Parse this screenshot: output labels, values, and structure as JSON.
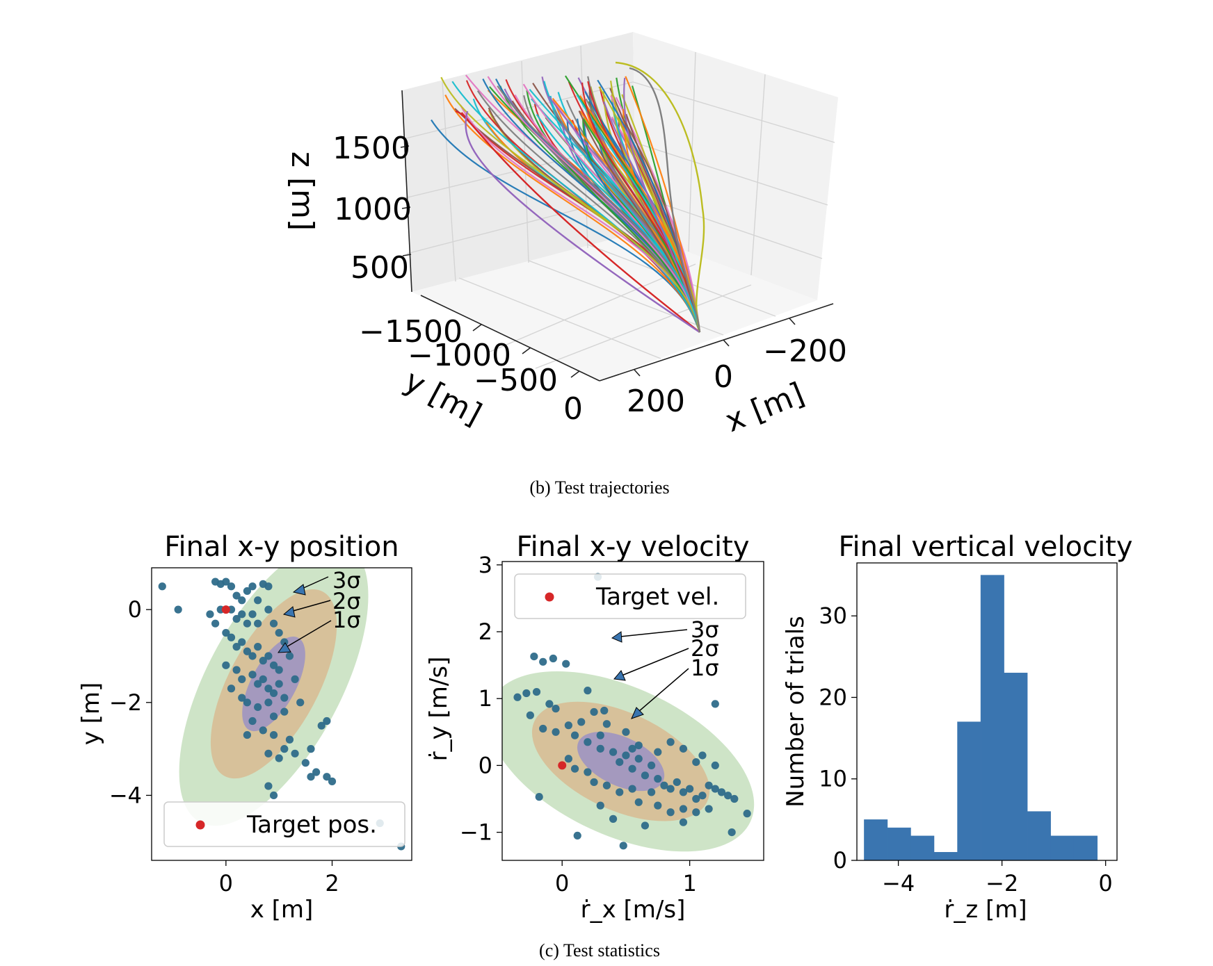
{
  "captions": {
    "b": "(b)  Test trajectories",
    "c": "(c)  Test statistics"
  },
  "trajectory_plot": {
    "zlabel": "z [m]",
    "ylabel": "y [m]",
    "xlabel": "x [m]",
    "z_ticks": [
      "1500",
      "1000",
      "500"
    ],
    "y_ticks": [
      "−1500",
      "−1000",
      "−500",
      "0"
    ],
    "x_ticks": [
      "−200",
      "0",
      "200"
    ]
  },
  "colors": {
    "tab": [
      "#1f77b4",
      "#ff7f0e",
      "#2ca02c",
      "#d62728",
      "#9467bd",
      "#8c564b",
      "#e377c2",
      "#7f7f7f",
      "#bcbd22",
      "#17becf"
    ],
    "target": "#d62728",
    "hist_bar": "#3a75b0",
    "scatter": "#2e6b8a",
    "sigma1": "#9b92c4",
    "sigma2": "#d8bb92",
    "sigma3": "#cbe3c4"
  },
  "chart_data": [
    {
      "type": "line",
      "title": "",
      "projection": "3d",
      "xlabel": "x [m]",
      "ylabel": "y [m]",
      "zlabel": "z [m]",
      "xlim": [
        -300,
        300
      ],
      "ylim": [
        -1700,
        0
      ],
      "zlim": [
        200,
        1900
      ],
      "description_series": "about 100 simulated test trajectories converging to the origin at z≈0",
      "grid": true
    },
    {
      "type": "scatter",
      "title": "Final x-y position",
      "xlabel": "x [m]",
      "ylabel": "y [m]",
      "xlim": [
        -1.4,
        3.5
      ],
      "ylim": [
        -5.4,
        0.9
      ],
      "x_ticks": [
        0,
        2
      ],
      "y_ticks": [
        0,
        -2,
        -4
      ],
      "x_tick_labels": [
        "0",
        "2"
      ],
      "y_tick_labels": [
        "0",
        "−2",
        "−4"
      ],
      "legend": {
        "label": "Target pos.",
        "position": "lower right"
      },
      "target": [
        0,
        0
      ],
      "sigma_labels": [
        "3σ",
        "2σ",
        "1σ"
      ],
      "ellipse_center": [
        0.9,
        -1.6
      ],
      "ellipse_angle_deg": 62,
      "ellipse_semi_axes": [
        [
          1.05,
          0.45
        ],
        [
          2.1,
          0.9
        ],
        [
          3.15,
          1.35
        ]
      ],
      "points": [
        [
          -1.2,
          0.5
        ],
        [
          -0.9,
          0.0
        ],
        [
          -0.2,
          0.6
        ],
        [
          -0.1,
          0.55
        ],
        [
          0.0,
          0.6
        ],
        [
          0.1,
          0.5
        ],
        [
          0.2,
          0.3
        ],
        [
          0.3,
          0.2
        ],
        [
          0.4,
          0.4
        ],
        [
          0.5,
          0.5
        ],
        [
          0.6,
          0.2
        ],
        [
          0.7,
          0.55
        ],
        [
          0.8,
          0.5
        ],
        [
          0.8,
          0.0
        ],
        [
          -0.3,
          -0.1
        ],
        [
          -0.2,
          -0.3
        ],
        [
          -0.1,
          0.0
        ],
        [
          0.1,
          0.0
        ],
        [
          0.2,
          -0.2
        ],
        [
          0.3,
          -0.1
        ],
        [
          0.4,
          -0.3
        ],
        [
          0.5,
          -0.1
        ],
        [
          0.6,
          -0.3
        ],
        [
          0.9,
          -0.3
        ],
        [
          1.0,
          -0.5
        ],
        [
          1.1,
          -0.7
        ],
        [
          0.0,
          -0.5
        ],
        [
          0.1,
          -0.6
        ],
        [
          0.2,
          -0.8
        ],
        [
          0.3,
          -0.7
        ],
        [
          0.4,
          -0.9
        ],
        [
          0.5,
          -1.0
        ],
        [
          0.6,
          -0.8
        ],
        [
          0.7,
          -1.1
        ],
        [
          0.8,
          -1.0
        ],
        [
          0.9,
          -1.2
        ],
        [
          1.0,
          -1.3
        ],
        [
          1.2,
          -1.0
        ],
        [
          0.0,
          -1.2
        ],
        [
          0.2,
          -1.3
        ],
        [
          0.3,
          -1.5
        ],
        [
          0.5,
          -1.4
        ],
        [
          0.6,
          -1.6
        ],
        [
          0.7,
          -1.5
        ],
        [
          0.8,
          -1.7
        ],
        [
          0.9,
          -1.8
        ],
        [
          1.0,
          -1.6
        ],
        [
          1.1,
          -1.9
        ],
        [
          1.3,
          -1.5
        ],
        [
          0.1,
          -1.7
        ],
        [
          0.3,
          -1.9
        ],
        [
          0.4,
          -2.0
        ],
        [
          0.6,
          -2.1
        ],
        [
          0.8,
          -2.0
        ],
        [
          0.9,
          -2.3
        ],
        [
          1.1,
          -2.2
        ],
        [
          1.4,
          -2.0
        ],
        [
          0.5,
          -2.4
        ],
        [
          0.7,
          -2.6
        ],
        [
          0.9,
          -2.7
        ],
        [
          1.2,
          -2.8
        ],
        [
          1.3,
          -3.1
        ],
        [
          0.8,
          -3.1
        ],
        [
          1.0,
          -3.2
        ],
        [
          1.1,
          -3.0
        ],
        [
          1.6,
          -3.0
        ],
        [
          1.8,
          -2.5
        ],
        [
          1.9,
          -2.4
        ],
        [
          0.4,
          -2.7
        ],
        [
          1.5,
          -3.3
        ],
        [
          1.7,
          -3.5
        ],
        [
          1.6,
          -3.6
        ],
        [
          1.9,
          -3.6
        ],
        [
          2.0,
          -3.7
        ],
        [
          0.8,
          -3.8
        ],
        [
          0.9,
          -4.0
        ],
        [
          2.9,
          -4.6
        ],
        [
          3.3,
          -5.1
        ]
      ]
    },
    {
      "type": "scatter",
      "title": "Final x-y velocity",
      "xlabel": "ṙ_x [m/s]",
      "ylabel": "ṙ_y [m/s]",
      "xlim": [
        -0.47,
        1.58
      ],
      "ylim": [
        -1.42,
        3.05
      ],
      "x_ticks": [
        0,
        1
      ],
      "y_ticks": [
        3,
        2,
        1,
        0,
        -1
      ],
      "x_tick_labels": [
        "0",
        "1"
      ],
      "y_tick_labels": [
        "3",
        "2",
        "1",
        "0",
        "−1"
      ],
      "legend": {
        "label": "Target vel.",
        "position": "upper left"
      },
      "target": [
        0,
        0
      ],
      "sigma_labels": [
        "3σ",
        "2σ",
        "1σ"
      ],
      "ellipse_center": [
        0.46,
        0.06
      ],
      "ellipse_angle_deg": -25,
      "ellipse_semi_axes": [
        [
          0.48,
          0.25
        ],
        [
          0.98,
          0.5
        ],
        [
          1.47,
          0.76
        ]
      ],
      "points": [
        [
          0.28,
          2.82
        ],
        [
          -0.22,
          1.63
        ],
        [
          -0.15,
          1.55
        ],
        [
          -0.07,
          1.6
        ],
        [
          0.03,
          1.52
        ],
        [
          -0.35,
          1.02
        ],
        [
          -0.28,
          1.08
        ],
        [
          -0.2,
          1.1
        ],
        [
          -0.1,
          0.92
        ],
        [
          -0.05,
          0.85
        ],
        [
          0.2,
          1.12
        ],
        [
          0.25,
          0.8
        ],
        [
          0.33,
          0.82
        ],
        [
          0.35,
          0.62
        ],
        [
          0.15,
          0.65
        ],
        [
          -0.25,
          0.75
        ],
        [
          -0.15,
          0.55
        ],
        [
          -0.05,
          0.5
        ],
        [
          0.05,
          0.6
        ],
        [
          0.1,
          0.45
        ],
        [
          0.2,
          0.35
        ],
        [
          0.3,
          0.45
        ],
        [
          0.3,
          0.25
        ],
        [
          0.4,
          0.2
        ],
        [
          0.45,
          0.05
        ],
        [
          0.5,
          0.15
        ],
        [
          0.55,
          -0.05
        ],
        [
          0.6,
          0.1
        ],
        [
          0.65,
          -0.15
        ],
        [
          0.7,
          0.0
        ],
        [
          0.75,
          -0.2
        ],
        [
          0.8,
          -0.3
        ],
        [
          0.85,
          -0.35
        ],
        [
          0.9,
          -0.25
        ],
        [
          0.95,
          -0.4
        ],
        [
          1.0,
          -0.35
        ],
        [
          1.05,
          -0.5
        ],
        [
          1.1,
          -0.45
        ],
        [
          1.15,
          -0.3
        ],
        [
          1.2,
          -0.35
        ],
        [
          1.25,
          -0.4
        ],
        [
          1.3,
          -0.45
        ],
        [
          1.35,
          -0.5
        ],
        [
          0.05,
          0.1
        ],
        [
          0.1,
          -0.05
        ],
        [
          0.2,
          -0.1
        ],
        [
          0.25,
          -0.25
        ],
        [
          0.35,
          -0.3
        ],
        [
          0.45,
          -0.4
        ],
        [
          0.55,
          -0.35
        ],
        [
          0.6,
          -0.55
        ],
        [
          0.75,
          -0.6
        ],
        [
          0.85,
          -0.7
        ],
        [
          0.95,
          -0.65
        ],
        [
          1.05,
          -0.7
        ],
        [
          1.15,
          -0.65
        ],
        [
          0.3,
          -0.6
        ],
        [
          0.4,
          -0.8
        ],
        [
          0.65,
          -0.9
        ],
        [
          0.95,
          -0.85
        ],
        [
          0.5,
          0.5
        ],
        [
          0.6,
          0.3
        ],
        [
          0.75,
          0.2
        ],
        [
          0.85,
          0.35
        ],
        [
          0.95,
          0.25
        ],
        [
          1.1,
          0.15
        ],
        [
          1.05,
          0.05
        ],
        [
          1.2,
          0.0
        ],
        [
          0.55,
          0.25
        ],
        [
          0.7,
          -0.4
        ],
        [
          1.2,
          0.92
        ],
        [
          1.33,
          -1.0
        ],
        [
          1.45,
          -0.72
        ],
        [
          -0.18,
          -0.47
        ],
        [
          0.12,
          -1.05
        ],
        [
          0.48,
          -1.2
        ]
      ]
    },
    {
      "type": "bar",
      "title": "Final vertical velocity",
      "xlabel": "ṙ_z [m]",
      "ylabel": "Number of trials",
      "xlim": [
        -4.8,
        0.22
      ],
      "ylim": [
        0,
        36.5
      ],
      "x_ticks": [
        -4,
        -2,
        0
      ],
      "y_ticks": [
        0,
        10,
        20,
        30
      ],
      "x_tick_labels": [
        "−4",
        "−2",
        "0"
      ],
      "y_tick_labels": [
        "0",
        "10",
        "20",
        "30"
      ],
      "bin_edges": [
        -4.66,
        -4.21,
        -3.76,
        -3.31,
        -2.86,
        -2.41,
        -1.96,
        -1.51,
        -1.06,
        -0.61,
        -0.16,
        0.08
      ],
      "values": [
        5,
        4,
        3,
        1,
        17,
        35,
        23,
        6,
        3,
        3,
        0
      ]
    }
  ]
}
